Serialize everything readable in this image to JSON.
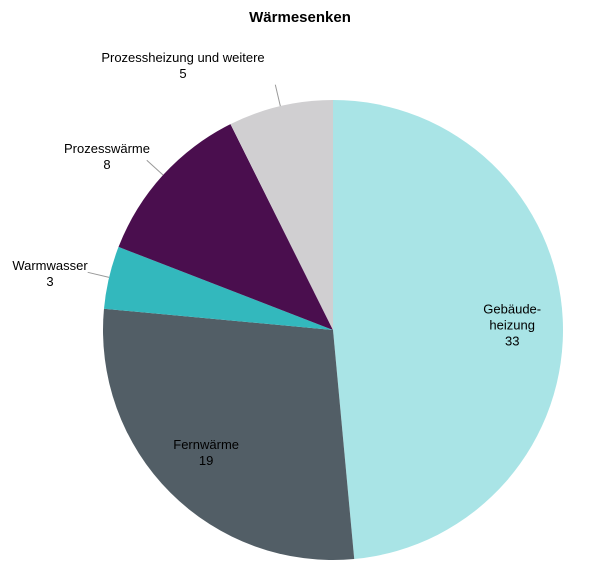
{
  "chart_data": {
    "type": "pie",
    "title": "Wärmesenken",
    "categories": [
      "Gebäude-\nheizung",
      "Fernwärme",
      "Warmwasser",
      "Prozesswärme",
      "Prozessheizung und weitere"
    ],
    "values": [
      33,
      19,
      3,
      8,
      5
    ],
    "colors": [
      "#a9e4e6",
      "#525e66",
      "#33b8bd",
      "#4a0e4e",
      "#d0cfd1"
    ]
  }
}
